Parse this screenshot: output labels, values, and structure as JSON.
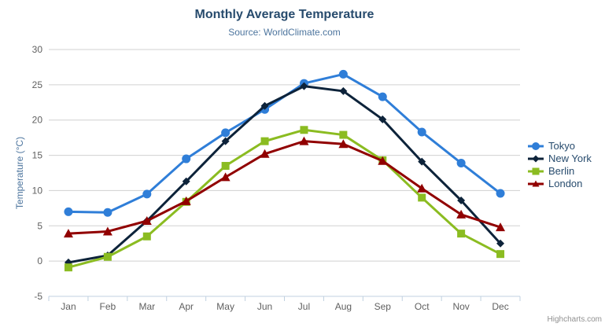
{
  "chart": {
    "title": "Monthly Average Temperature",
    "subtitle": "Source: WorldClimate.com",
    "credits": "Highcharts.com"
  },
  "chart_data": {
    "type": "line",
    "title": "Monthly Average Temperature",
    "subtitle": "Source: WorldClimate.com",
    "xlabel": "",
    "ylabel": "Temperature (°C)",
    "ylim": [
      -5,
      30
    ],
    "y_tick_step": 5,
    "grid": true,
    "legend_position": "right",
    "categories": [
      "Jan",
      "Feb",
      "Mar",
      "Apr",
      "May",
      "Jun",
      "Jul",
      "Aug",
      "Sep",
      "Oct",
      "Nov",
      "Dec"
    ],
    "series": [
      {
        "name": "Tokyo",
        "color": "#2f7ed8",
        "marker": "circle",
        "values": [
          7.0,
          6.9,
          9.5,
          14.5,
          18.2,
          21.5,
          25.2,
          26.5,
          23.3,
          18.3,
          13.9,
          9.6
        ]
      },
      {
        "name": "New York",
        "color": "#0d233a",
        "marker": "diamond",
        "values": [
          -0.2,
          0.8,
          5.7,
          11.3,
          17.0,
          22.0,
          24.8,
          24.1,
          20.1,
          14.1,
          8.6,
          2.5
        ]
      },
      {
        "name": "Berlin",
        "color": "#8bbc21",
        "marker": "square",
        "values": [
          -0.9,
          0.6,
          3.5,
          8.4,
          13.5,
          17.0,
          18.6,
          17.9,
          14.3,
          9.0,
          3.9,
          1.0
        ]
      },
      {
        "name": "London",
        "color": "#910000",
        "marker": "triangle",
        "values": [
          3.9,
          4.2,
          5.7,
          8.5,
          11.9,
          15.2,
          17.0,
          16.6,
          14.2,
          10.3,
          6.6,
          4.8
        ]
      }
    ],
    "axis_line_color": "#C0D0E0",
    "grid_line_color": "#D0D0D0"
  }
}
